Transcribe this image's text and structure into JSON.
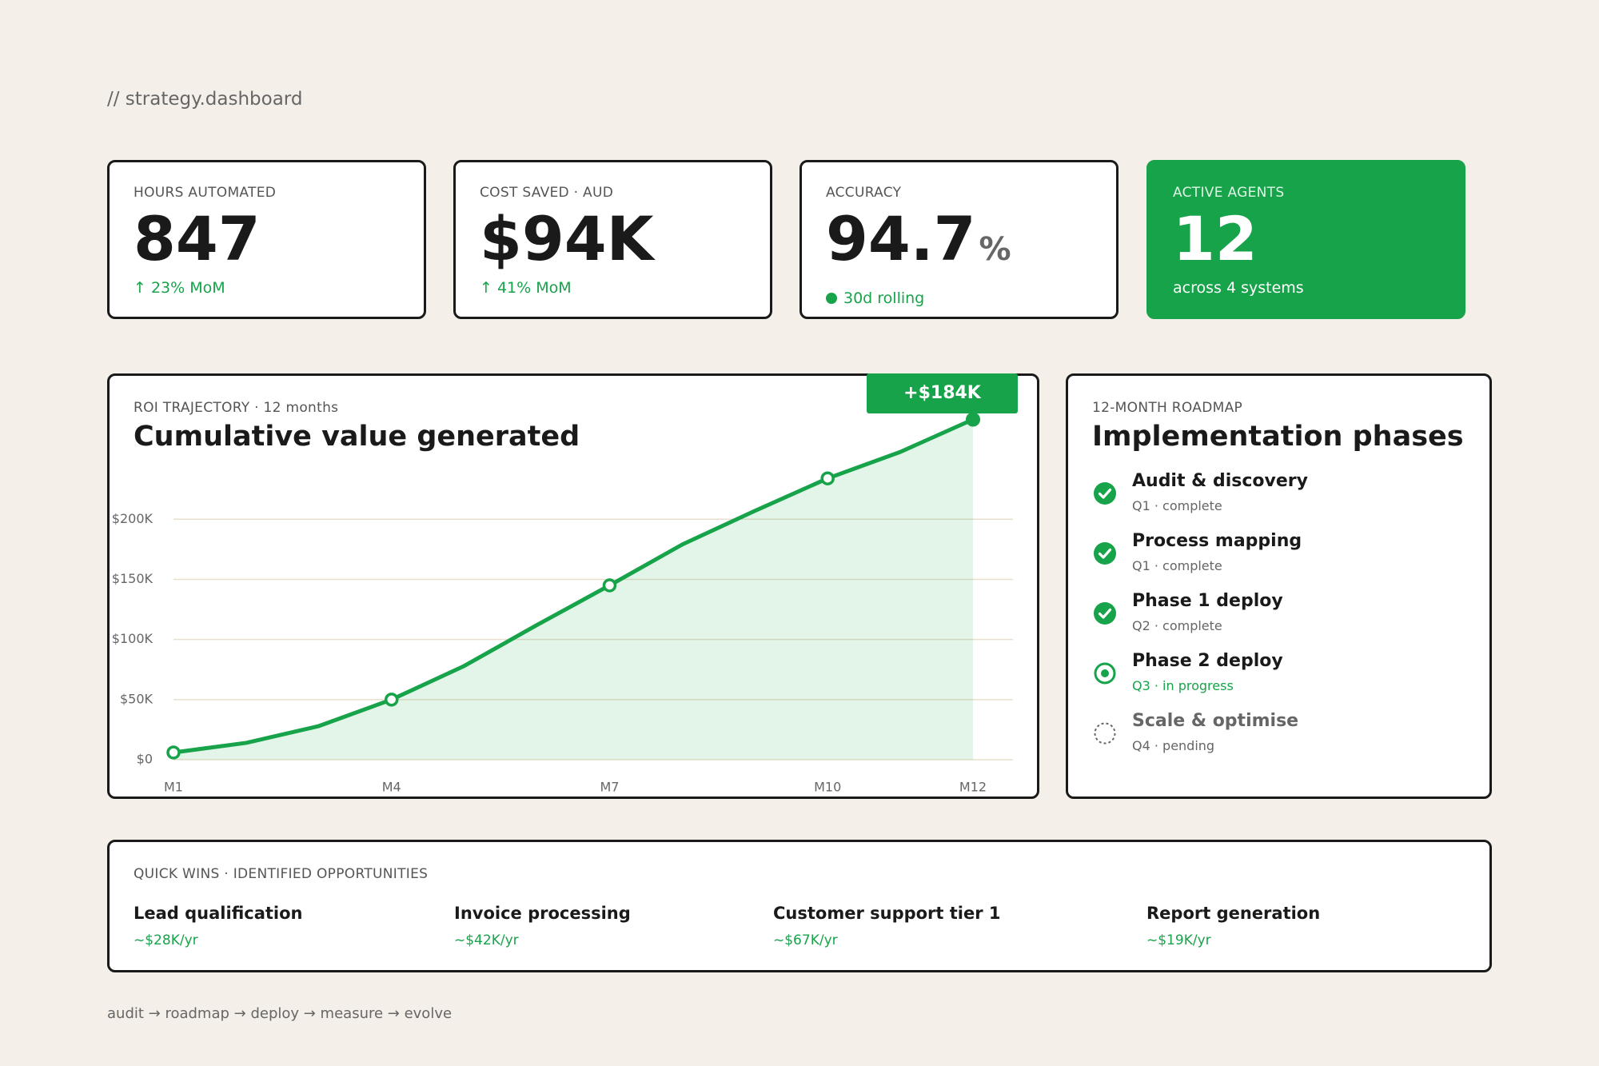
{
  "header": {
    "title": "// strategy.dashboard"
  },
  "kpis": [
    {
      "label": "HOURS AUTOMATED",
      "value": "847",
      "note": "↑ 23% MoM"
    },
    {
      "label": "COST SAVED · AUD",
      "value": "$94K",
      "note": "↑ 41% MoM"
    },
    {
      "label": "ACCURACY",
      "value": "94.7",
      "unit": "%",
      "note": "30d rolling"
    },
    {
      "label": "ACTIVE AGENTS",
      "value": "12",
      "note": "across 4 systems"
    }
  ],
  "roi": {
    "label": "ROI TRAJECTORY · 12 months",
    "title": "Cumulative value generated",
    "badge": "+$184K",
    "chart_data": {
      "type": "line",
      "categories": [
        "M1",
        null,
        null,
        "M4",
        null,
        null,
        "M7",
        null,
        null,
        "M10",
        null,
        "M12"
      ],
      "values": [
        6,
        14,
        28,
        50,
        78,
        112,
        145,
        179,
        207,
        234,
        256,
        283
      ],
      "color": "#17a34a",
      "ylim": [
        0,
        290
      ],
      "yticks": [
        {
          "value": 0,
          "label": "$0"
        },
        {
          "value": 50,
          "label": "$50K"
        },
        {
          "value": 100,
          "label": "$100K"
        },
        {
          "value": 150,
          "label": "$150K"
        },
        {
          "value": 200,
          "label": "$200K"
        }
      ],
      "grid": true
    }
  },
  "roadmap": {
    "label": "12-MONTH ROADMAP",
    "title": "Implementation phases",
    "phases": [
      {
        "name": "Audit & discovery",
        "status": "Q1 · complete",
        "icon": "done"
      },
      {
        "name": "Process mapping",
        "status": "Q1 · complete",
        "icon": "done"
      },
      {
        "name": "Phase 1 deploy",
        "status": "Q2 · complete",
        "icon": "done"
      },
      {
        "name": "Phase 2 deploy",
        "status": "Q3 · in progress",
        "icon": "current"
      },
      {
        "name": "Scale & optimise",
        "status": "Q4 · pending",
        "icon": "pending"
      }
    ]
  },
  "quick_wins": {
    "label": "QUICK WINS · IDENTIFIED OPPORTUNITIES",
    "items": [
      {
        "name": "Lead qualification",
        "value": "~$28K/yr"
      },
      {
        "name": "Invoice processing",
        "value": "~$42K/yr"
      },
      {
        "name": "Customer support tier 1",
        "value": "~$67K/yr"
      },
      {
        "name": "Report generation",
        "value": "~$19K/yr"
      }
    ]
  },
  "footer": "audit → roadmap → deploy → measure → evolve"
}
